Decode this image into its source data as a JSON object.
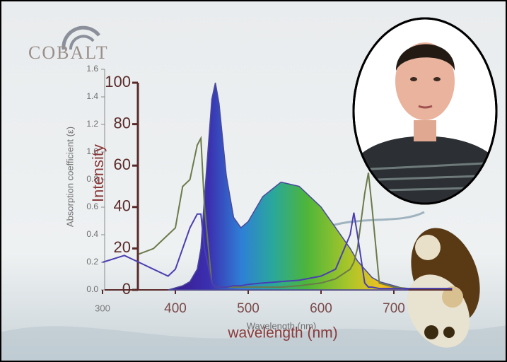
{
  "logo": "COBALT",
  "chart_data": {
    "type": "line",
    "ylabel": "Absorption coefficient (ε)",
    "y2label": "Intensity",
    "xlabel": "Wavelength (nm)",
    "x2label": "wavelength (nm)",
    "xlim": [
      300,
      780
    ],
    "xticks": [
      300,
      400,
      500,
      600,
      700
    ],
    "ylim": [
      0,
      1.6
    ],
    "yticks": [
      {
        "value": 0,
        "label": "0.0"
      },
      {
        "value": 0.2,
        "label": "0.2"
      },
      {
        "value": 0.4,
        "label": "0.4"
      },
      {
        "value": 0.6,
        "label": "0.6"
      },
      {
        "value": 0.8,
        "label": "0.8"
      },
      {
        "value": 1.0,
        "label": "1.0"
      },
      {
        "value": 1.2,
        "label": "1.2"
      },
      {
        "value": 1.4,
        "label": "1.4"
      },
      {
        "value": 1.6,
        "label": "1.6"
      }
    ],
    "y2lim": [
      0,
      100
    ],
    "y2ticks": [
      0,
      20,
      40,
      60,
      80,
      100
    ],
    "grid": false,
    "x": [
      300,
      330,
      350,
      370,
      390,
      400,
      410,
      420,
      430,
      435,
      440,
      450,
      455,
      460,
      470,
      480,
      490,
      500,
      520,
      545,
      570,
      600,
      620,
      640,
      645,
      650,
      660,
      665,
      670,
      680,
      700,
      720,
      750,
      780
    ],
    "series": [
      {
        "color": "#4a4a9a",
        "axis": "y2",
        "fill": true,
        "values": [
          null,
          null,
          null,
          null,
          0,
          1,
          2,
          4,
          10,
          20,
          45,
          92,
          100,
          90,
          55,
          35,
          30,
          33,
          45,
          52,
          50,
          40,
          30,
          20,
          17,
          14,
          10,
          8,
          6,
          4,
          2,
          0,
          null,
          null
        ]
      },
      {
        "color": "#6b7a4a",
        "values": [
          null,
          null,
          0.26,
          0.3,
          0.4,
          0.45,
          0.75,
          0.8,
          1.05,
          1.1,
          0.6,
          0.05,
          0.02,
          0.02,
          0.02,
          0.02,
          0.02,
          0.02,
          0.02,
          0.02,
          0.03,
          0.05,
          0.08,
          0.15,
          0.2,
          0.3,
          0.7,
          0.85,
          0.6,
          0.05,
          0.02,
          0.01,
          0.01,
          0.01
        ]
      },
      {
        "color": "#4a3fb0",
        "values": [
          0.2,
          0.25,
          0.2,
          0.15,
          0.1,
          0.15,
          0.3,
          0.45,
          0.55,
          0.55,
          0.3,
          0.05,
          0.02,
          0.02,
          0.02,
          0.03,
          0.03,
          0.04,
          0.05,
          0.06,
          0.07,
          0.1,
          0.15,
          0.4,
          0.56,
          0.4,
          0.05,
          0.02,
          0.02,
          0.01,
          0.01,
          0.01,
          0.01,
          0.01
        ]
      }
    ]
  }
}
